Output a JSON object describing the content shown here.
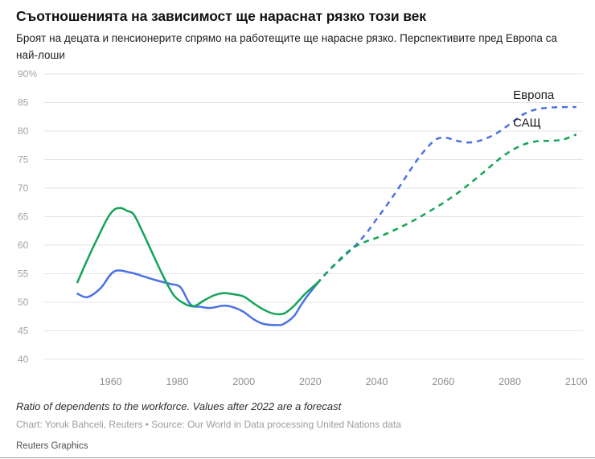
{
  "chart_data": {
    "type": "line",
    "title": "Съотношенията на зависимост ще нараснат рязко този век",
    "subtitle": "Броят на децата и пенсионерите спрямо на работещите ще нарасне рязко. Перспективите пред Европа са най-лоши",
    "xlabel": "",
    "ylabel": "",
    "xlim": [
      1940,
      2102
    ],
    "ylim": [
      40,
      90
    ],
    "yticks": [
      40,
      45,
      50,
      55,
      60,
      65,
      70,
      75,
      80,
      85,
      90
    ],
    "ytick_labels": [
      "40",
      "45",
      "50",
      "55",
      "60",
      "65",
      "70",
      "75",
      "80",
      "85",
      "90%"
    ],
    "xticks": [
      1960,
      1980,
      2000,
      2020,
      2040,
      2060,
      2080,
      2100
    ],
    "grid": "horizontal",
    "legend_position": "inline-right",
    "forecast_start": 2022,
    "forecast_style": "dashed",
    "series": [
      {
        "id": "europe",
        "name": "Европа",
        "color": "#4b72e3",
        "x": [
          1950,
          1953,
          1957,
          1961,
          1966,
          1970,
          1974,
          1978,
          1981,
          1984,
          1987,
          1990,
          1994,
          1997,
          2000,
          2003,
          2006,
          2010,
          2012,
          2015,
          2017,
          2019,
          2022,
          2025,
          2028,
          2031,
          2034,
          2037,
          2040,
          2043,
          2046,
          2049,
          2052,
          2055,
          2058,
          2061,
          2064,
          2068,
          2072,
          2076,
          2080,
          2084,
          2088,
          2092,
          2096,
          2100
        ],
        "y": [
          51.5,
          50.9,
          52.5,
          55.4,
          55.2,
          54.5,
          53.8,
          53.2,
          52.6,
          49.6,
          49.2,
          49.0,
          49.4,
          49.1,
          48.3,
          47.0,
          46.2,
          46.0,
          46.2,
          47.5,
          49.3,
          51.0,
          53.2,
          55.2,
          56.9,
          58.5,
          60.2,
          62.2,
          64.6,
          67.0,
          69.5,
          72.2,
          74.8,
          77.0,
          78.6,
          78.8,
          78.3,
          78.0,
          78.5,
          79.6,
          81.2,
          82.9,
          83.8,
          84.1,
          84.2,
          84.2
        ]
      },
      {
        "id": "us",
        "name": "САЩ",
        "color": "#13a457",
        "x": [
          1950,
          1953,
          1956,
          1959,
          1961,
          1963,
          1965,
          1967,
          1970,
          1973,
          1976,
          1979,
          1982,
          1985,
          1988,
          1991,
          1994,
          1997,
          2000,
          2003,
          2006,
          2009,
          2012,
          2015,
          2018,
          2020,
          2022,
          2025,
          2028,
          2031,
          2034,
          2037,
          2040,
          2044,
          2048,
          2052,
          2056,
          2060,
          2064,
          2068,
          2072,
          2076,
          2080,
          2084,
          2088,
          2092,
          2096,
          2100
        ],
        "y": [
          53.5,
          57.5,
          61.2,
          64.7,
          66.2,
          66.5,
          66.0,
          65.3,
          61.8,
          58.0,
          54.3,
          51.2,
          49.8,
          49.3,
          50.3,
          51.2,
          51.6,
          51.4,
          51.0,
          49.8,
          48.7,
          48.0,
          48.0,
          49.3,
          51.2,
          52.3,
          53.3,
          55.2,
          57.0,
          58.7,
          59.9,
          60.7,
          61.3,
          62.3,
          63.4,
          64.6,
          66.0,
          67.4,
          69.0,
          70.8,
          72.7,
          74.7,
          76.4,
          77.6,
          78.2,
          78.3,
          78.5,
          79.4
        ]
      }
    ]
  },
  "footer": {
    "note": "Ratio of dependents to the workforce. Values after 2022 are a forecast",
    "credit": "Chart: Yoruk Bahceli, Reuters • Source: Our World in Data processing United Nations data",
    "brand": "Reuters Graphics"
  }
}
